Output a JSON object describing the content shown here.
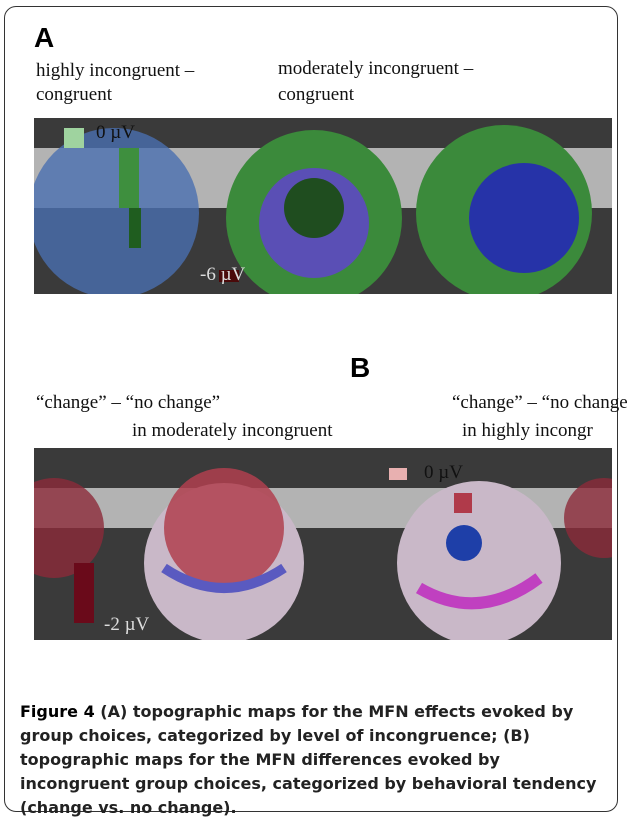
{
  "panel_a": {
    "label": "A",
    "columns": [
      {
        "line1": "highly incongruent –",
        "line2": "congruent"
      },
      {
        "line1": "moderately incongruent –",
        "line2": "congruent"
      }
    ],
    "scale_max": "0 µV",
    "scale_min": "-6 µV"
  },
  "panel_b": {
    "label": "B",
    "columns": [
      {
        "line1": "“change” – “no change”",
        "line2": "in moderately incongruent"
      },
      {
        "line1": "“change” – “no change”",
        "line2": "in highly incongr"
      }
    ],
    "scale_max": "0 µV",
    "scale_min": "-2 µV"
  },
  "caption": {
    "label": "Figure 4",
    "text": "(A) topographic maps for the MFN effects evoked by group choices, categorized by level of incongruence; (B) topographic maps for the MFN differences evoked by incongruent group choices, categorized by behavioral tendency (change vs. no change)."
  }
}
